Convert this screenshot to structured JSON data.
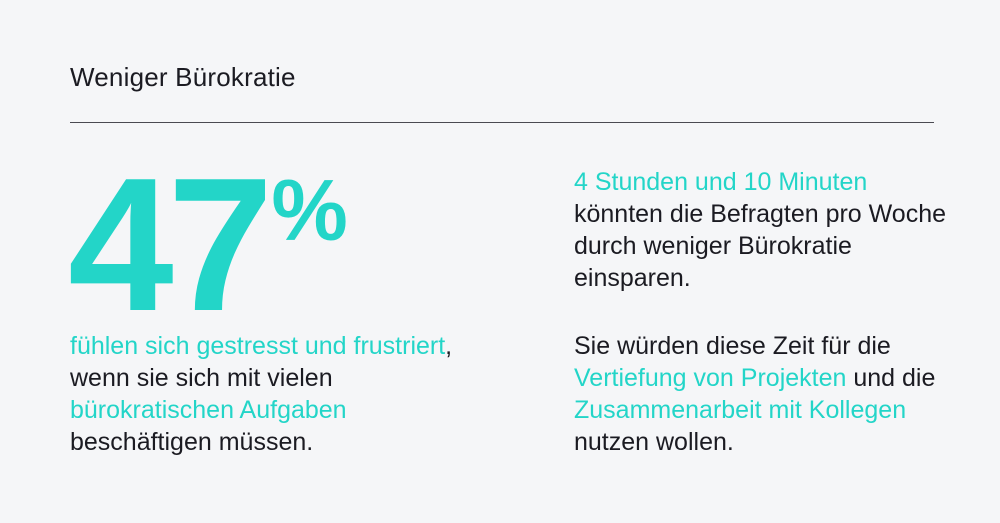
{
  "title": "Weniger Bürokratie",
  "stat": {
    "value": "47",
    "unit": "%"
  },
  "left_paragraph": {
    "hl1": "fühlen sich gestresst und frustriert",
    "t1": ", wenn sie sich mit vielen ",
    "hl2": "bürokratischen Aufgaben",
    "t2": " beschäftigen müssen."
  },
  "right_top": {
    "hl1": "4 Stunden und 10 Minuten",
    "t1": " könnten die Befragten pro Woche durch weniger Bürokratie einsparen."
  },
  "right_bottom": {
    "t1": "Sie würden diese Zeit für die ",
    "hl1": "Vertiefung von Projekten",
    "t2": " und die ",
    "hl2": "Zusammenarbeit mit Kollegen",
    "t3": " nutzen wollen."
  },
  "colors": {
    "accent": "#23d5c8",
    "text": "#1b1b22",
    "background": "#f5f6f8"
  }
}
